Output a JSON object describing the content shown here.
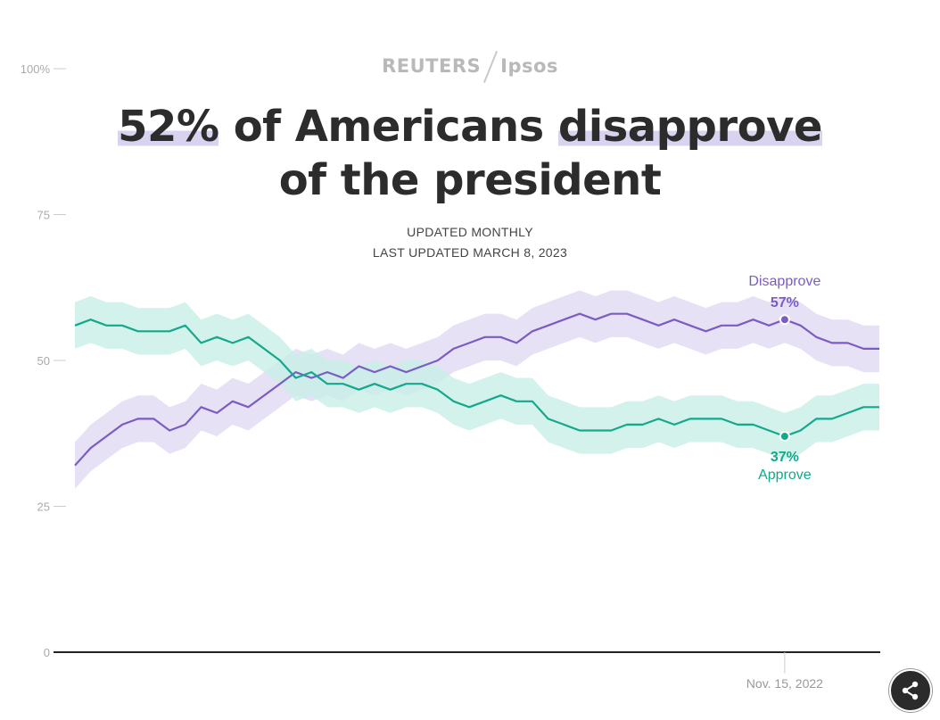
{
  "header": {
    "brand_left": "REUTERS",
    "brand_right": "Ipsos",
    "title_part1": "52%",
    "title_part2": " of Americans ",
    "title_part3": "disapprove",
    "title_part4": " of the president",
    "subtitle_1": "UPDATED MONTHLY",
    "subtitle_2": "LAST UPDATED MARCH 8, 2023"
  },
  "share": {
    "icon": "share-icon"
  },
  "colors": {
    "disapprove": "#7b5cc4",
    "disapprove_band": "#e3dcf3",
    "approve": "#14a88c",
    "approve_band": "#c8efe6",
    "axis": "#222222",
    "tick": "#aaaaaa"
  },
  "chart_data": {
    "type": "line",
    "y_ticks": [
      "100%",
      "75",
      "50",
      "25",
      "0"
    ],
    "ylim": [
      0,
      100
    ],
    "x_annotation": "Nov. 15, 2022",
    "annotation_x_index": 45,
    "series": [
      {
        "name": "Disapprove",
        "label_value": "57%",
        "values": [
          32,
          35,
          37,
          39,
          40,
          40,
          38,
          39,
          42,
          41,
          43,
          42,
          44,
          46,
          48,
          47,
          48,
          47,
          49,
          48,
          49,
          48,
          49,
          50,
          52,
          53,
          54,
          54,
          53,
          55,
          56,
          57,
          58,
          57,
          58,
          58,
          57,
          56,
          57,
          56,
          55,
          56,
          56,
          57,
          56,
          57,
          56,
          54,
          53,
          53,
          52,
          52
        ]
      },
      {
        "name": "Approve",
        "label_value": "37%",
        "values": [
          56,
          57,
          56,
          56,
          55,
          55,
          55,
          56,
          53,
          54,
          53,
          54,
          52,
          50,
          47,
          48,
          46,
          46,
          45,
          46,
          45,
          46,
          46,
          45,
          43,
          42,
          43,
          44,
          43,
          43,
          40,
          39,
          38,
          38,
          38,
          39,
          39,
          40,
          39,
          40,
          40,
          40,
          39,
          39,
          38,
          37,
          38,
          40,
          40,
          41,
          42,
          42
        ]
      }
    ]
  }
}
